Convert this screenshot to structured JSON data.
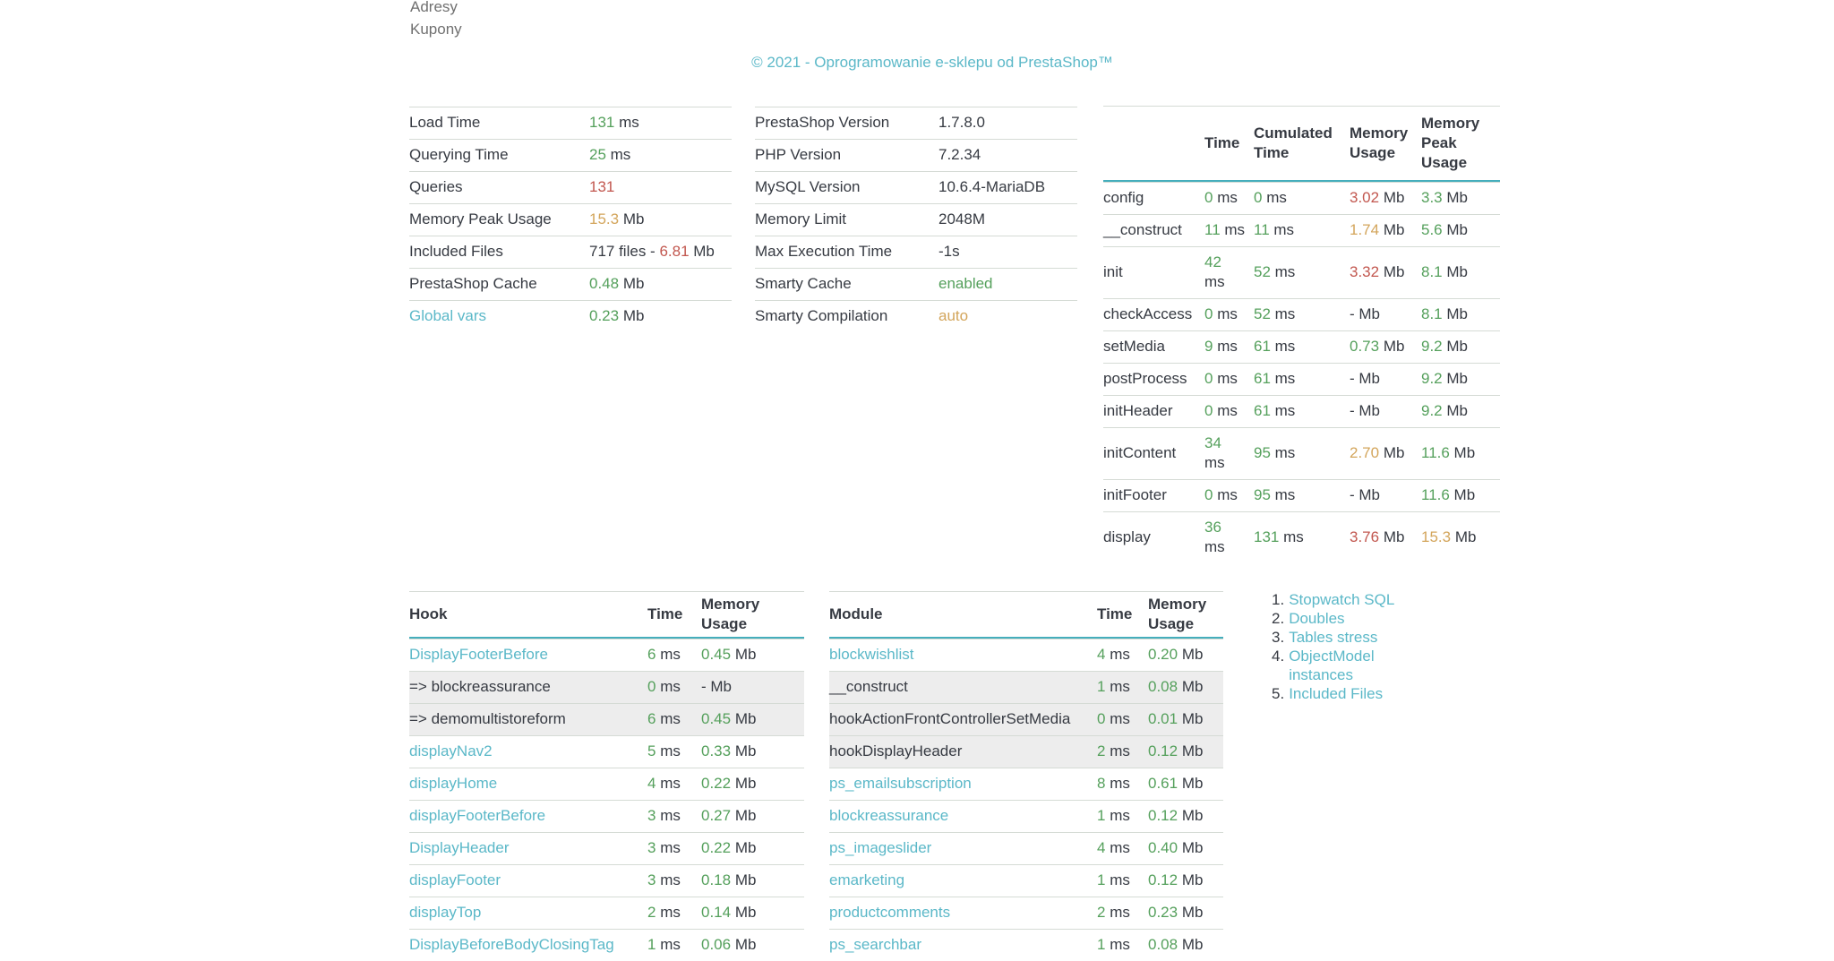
{
  "page": {
    "top_links": [
      {
        "label": "Adresy"
      },
      {
        "label": "Kupony"
      }
    ],
    "copyright": "© 2021 - Oprogramowanie e-sklepu od PrestaShop™"
  },
  "colors": {
    "link": "#5bb8c8",
    "green": "#55a05c",
    "red": "#c2574f",
    "orange": "#d3a55b",
    "text": "#363a42",
    "header_rule": "#45aebc",
    "row_border": "#d5dbd5",
    "subrow_bg": "#ededed",
    "muted": "#707070"
  },
  "units": {
    "time": "ms",
    "memory": "Mb"
  },
  "summary_table": {
    "rows": [
      {
        "label": "Load Time",
        "link": false,
        "value": [
          {
            "t": "131",
            "c": "green"
          },
          {
            "t": " ms",
            "c": ""
          }
        ]
      },
      {
        "label": "Querying Time",
        "link": false,
        "value": [
          {
            "t": "25",
            "c": "green"
          },
          {
            "t": " ms",
            "c": ""
          }
        ]
      },
      {
        "label": "Queries",
        "link": false,
        "value": [
          {
            "t": "131",
            "c": "red"
          }
        ]
      },
      {
        "label": "Memory Peak Usage",
        "link": false,
        "value": [
          {
            "t": "15.3",
            "c": "orange"
          },
          {
            "t": " Mb",
            "c": ""
          }
        ]
      },
      {
        "label": "Included Files",
        "link": false,
        "value": [
          {
            "t": "717 files - ",
            "c": ""
          },
          {
            "t": "6.81",
            "c": "red"
          },
          {
            "t": " Mb",
            "c": ""
          }
        ]
      },
      {
        "label": "PrestaShop Cache",
        "link": false,
        "value": [
          {
            "t": "0.48",
            "c": "green"
          },
          {
            "t": " Mb",
            "c": ""
          }
        ]
      },
      {
        "label": "Global vars",
        "link": true,
        "value": [
          {
            "t": "0.23",
            "c": "green"
          },
          {
            "t": " Mb",
            "c": ""
          }
        ]
      }
    ]
  },
  "server_table": {
    "rows": [
      {
        "label": "PrestaShop Version",
        "link": false,
        "value": [
          {
            "t": "1.7.8.0",
            "c": ""
          }
        ]
      },
      {
        "label": "PHP Version",
        "link": false,
        "value": [
          {
            "t": "7.2.34",
            "c": ""
          }
        ]
      },
      {
        "label": "MySQL Version",
        "link": false,
        "value": [
          {
            "t": "10.6.4-MariaDB",
            "c": ""
          }
        ]
      },
      {
        "label": "Memory Limit",
        "link": false,
        "value": [
          {
            "t": "2048M",
            "c": ""
          }
        ]
      },
      {
        "label": "Max Execution Time",
        "link": false,
        "value": [
          {
            "t": "-1s",
            "c": ""
          }
        ]
      },
      {
        "label": "Smarty Cache",
        "link": false,
        "value": [
          {
            "t": "enabled",
            "c": "green"
          }
        ]
      },
      {
        "label": "Smarty Compilation",
        "link": false,
        "value": [
          {
            "t": "auto",
            "c": "orange"
          }
        ]
      }
    ]
  },
  "stopwatch_table": {
    "headers": [
      "",
      "Time",
      "Cumulated Time",
      "Memory Usage",
      "Memory Peak Usage"
    ],
    "rows": [
      {
        "name": "config",
        "time": {
          "v": "0",
          "wrap": false
        },
        "cumulated": "0",
        "memory": {
          "v": "3.02",
          "c": "red"
        },
        "peak": {
          "v": "3.3",
          "c": "green"
        }
      },
      {
        "name": "__construct",
        "time": {
          "v": "11",
          "wrap": false
        },
        "cumulated": "11",
        "memory": {
          "v": "1.74",
          "c": "orange"
        },
        "peak": {
          "v": "5.6",
          "c": "green"
        }
      },
      {
        "name": "init",
        "time": {
          "v": "42",
          "wrap": true
        },
        "cumulated": "52",
        "memory": {
          "v": "3.32",
          "c": "red"
        },
        "peak": {
          "v": "8.1",
          "c": "green"
        }
      },
      {
        "name": "checkAccess",
        "time": {
          "v": "0",
          "wrap": false
        },
        "cumulated": "52",
        "memory": {
          "v": "-",
          "c": ""
        },
        "peak": {
          "v": "8.1",
          "c": "green"
        }
      },
      {
        "name": "setMedia",
        "time": {
          "v": "9",
          "wrap": false
        },
        "cumulated": "61",
        "memory": {
          "v": "0.73",
          "c": "green"
        },
        "peak": {
          "v": "9.2",
          "c": "green"
        }
      },
      {
        "name": "postProcess",
        "time": {
          "v": "0",
          "wrap": false
        },
        "cumulated": "61",
        "memory": {
          "v": "-",
          "c": ""
        },
        "peak": {
          "v": "9.2",
          "c": "green"
        }
      },
      {
        "name": "initHeader",
        "time": {
          "v": "0",
          "wrap": false
        },
        "cumulated": "61",
        "memory": {
          "v": "-",
          "c": ""
        },
        "peak": {
          "v": "9.2",
          "c": "green"
        }
      },
      {
        "name": "initContent",
        "time": {
          "v": "34",
          "wrap": true
        },
        "cumulated": "95",
        "memory": {
          "v": "2.70",
          "c": "orange"
        },
        "peak": {
          "v": "11.6",
          "c": "green"
        }
      },
      {
        "name": "initFooter",
        "time": {
          "v": "0",
          "wrap": false
        },
        "cumulated": "95",
        "memory": {
          "v": "-",
          "c": ""
        },
        "peak": {
          "v": "11.6",
          "c": "green"
        }
      },
      {
        "name": "display",
        "time": {
          "v": "36",
          "wrap": true
        },
        "cumulated": "131",
        "memory": {
          "v": "3.76",
          "c": "red"
        },
        "peak": {
          "v": "15.3",
          "c": "orange"
        }
      }
    ]
  },
  "hook_table": {
    "headers": [
      "Hook",
      "Time",
      "Memory Usage"
    ],
    "sub_prefix": "=> ",
    "rows": [
      {
        "name": "DisplayFooterBefore",
        "link": true,
        "sub": false,
        "time": "6",
        "memory": {
          "v": "0.45",
          "c": "green"
        }
      },
      {
        "name": "blockreassurance",
        "link": false,
        "sub": true,
        "time": "0",
        "memory": {
          "v": "-",
          "c": ""
        }
      },
      {
        "name": "demomultistoreform",
        "link": false,
        "sub": true,
        "time": "6",
        "memory": {
          "v": "0.45",
          "c": "green"
        }
      },
      {
        "name": "displayNav2",
        "link": true,
        "sub": false,
        "time": "5",
        "memory": {
          "v": "0.33",
          "c": "green"
        }
      },
      {
        "name": "displayHome",
        "link": true,
        "sub": false,
        "time": "4",
        "memory": {
          "v": "0.22",
          "c": "green"
        }
      },
      {
        "name": "displayFooterBefore",
        "link": true,
        "sub": false,
        "time": "3",
        "memory": {
          "v": "0.27",
          "c": "green"
        }
      },
      {
        "name": "DisplayHeader",
        "link": true,
        "sub": false,
        "time": "3",
        "memory": {
          "v": "0.22",
          "c": "green"
        }
      },
      {
        "name": "displayFooter",
        "link": true,
        "sub": false,
        "time": "3",
        "memory": {
          "v": "0.18",
          "c": "green"
        }
      },
      {
        "name": "displayTop",
        "link": true,
        "sub": false,
        "time": "2",
        "memory": {
          "v": "0.14",
          "c": "green"
        }
      },
      {
        "name": "DisplayBeforeBodyClosingTag",
        "link": true,
        "sub": false,
        "time": "1",
        "memory": {
          "v": "0.06",
          "c": "green"
        }
      }
    ]
  },
  "module_table": {
    "headers": [
      "Module",
      "Time",
      "Memory Usage"
    ],
    "sub_prefix": "",
    "rows": [
      {
        "name": "blockwishlist",
        "link": true,
        "sub": false,
        "time": "4",
        "memory": {
          "v": "0.20",
          "c": "green"
        }
      },
      {
        "name": "__construct",
        "link": false,
        "sub": true,
        "time": "1",
        "memory": {
          "v": "0.08",
          "c": "green"
        }
      },
      {
        "name": "hookActionFrontControllerSetMedia",
        "link": false,
        "sub": true,
        "time": "0",
        "memory": {
          "v": "0.01",
          "c": "green"
        }
      },
      {
        "name": "hookDisplayHeader",
        "link": false,
        "sub": true,
        "time": "2",
        "memory": {
          "v": "0.12",
          "c": "green"
        }
      },
      {
        "name": "ps_emailsubscription",
        "link": true,
        "sub": false,
        "time": "8",
        "memory": {
          "v": "0.61",
          "c": "green"
        }
      },
      {
        "name": "blockreassurance",
        "link": true,
        "sub": false,
        "time": "1",
        "memory": {
          "v": "0.12",
          "c": "green"
        }
      },
      {
        "name": "ps_imageslider",
        "link": true,
        "sub": false,
        "time": "4",
        "memory": {
          "v": "0.40",
          "c": "green"
        }
      },
      {
        "name": "emarketing",
        "link": true,
        "sub": false,
        "time": "1",
        "memory": {
          "v": "0.12",
          "c": "green"
        }
      },
      {
        "name": "productcomments",
        "link": true,
        "sub": false,
        "time": "2",
        "memory": {
          "v": "0.23",
          "c": "green"
        }
      },
      {
        "name": "ps_searchbar",
        "link": true,
        "sub": false,
        "time": "1",
        "memory": {
          "v": "0.08",
          "c": "green"
        }
      }
    ]
  },
  "profiler_menu": {
    "items": [
      {
        "n": "1.",
        "label": "Stopwatch SQL"
      },
      {
        "n": "2.",
        "label": "Doubles"
      },
      {
        "n": "3.",
        "label": "Tables stress"
      },
      {
        "n": "4.",
        "label": "ObjectModel instances"
      },
      {
        "n": "5.",
        "label": "Included Files"
      }
    ]
  }
}
